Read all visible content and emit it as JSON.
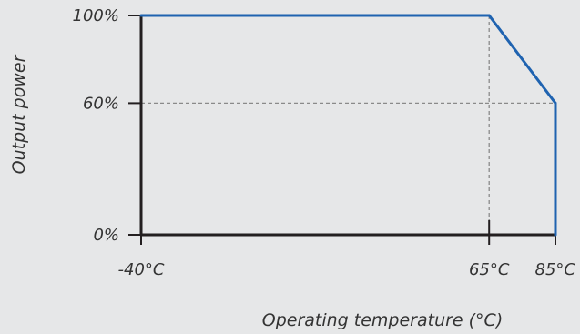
{
  "chart_data": {
    "type": "line",
    "xlabel": "Operating temperature (°C)",
    "ylabel": "Output power",
    "x_ticks": [
      {
        "value": -40,
        "label": "-40°C"
      },
      {
        "value": 65,
        "label": "65°C"
      },
      {
        "value": 85,
        "label": "85°C"
      }
    ],
    "y_ticks": [
      {
        "value": 0,
        "label": "0%"
      },
      {
        "value": 60,
        "label": "60%"
      },
      {
        "value": 100,
        "label": "100%"
      }
    ],
    "xlim": [
      -40,
      85
    ],
    "ylim": [
      0,
      100
    ],
    "series": [
      {
        "x": [
          -40,
          65,
          85,
          85
        ],
        "y": [
          100,
          100,
          60,
          0
        ]
      }
    ],
    "reference_lines": [
      {
        "type": "horizontal",
        "value": 60
      },
      {
        "type": "vertical",
        "value": 65
      }
    ],
    "grid": false,
    "colors": {
      "line": "#1f63b0",
      "axis": "#231f20",
      "reference": "#8a8a8a",
      "background": "#e6e7e8"
    }
  }
}
